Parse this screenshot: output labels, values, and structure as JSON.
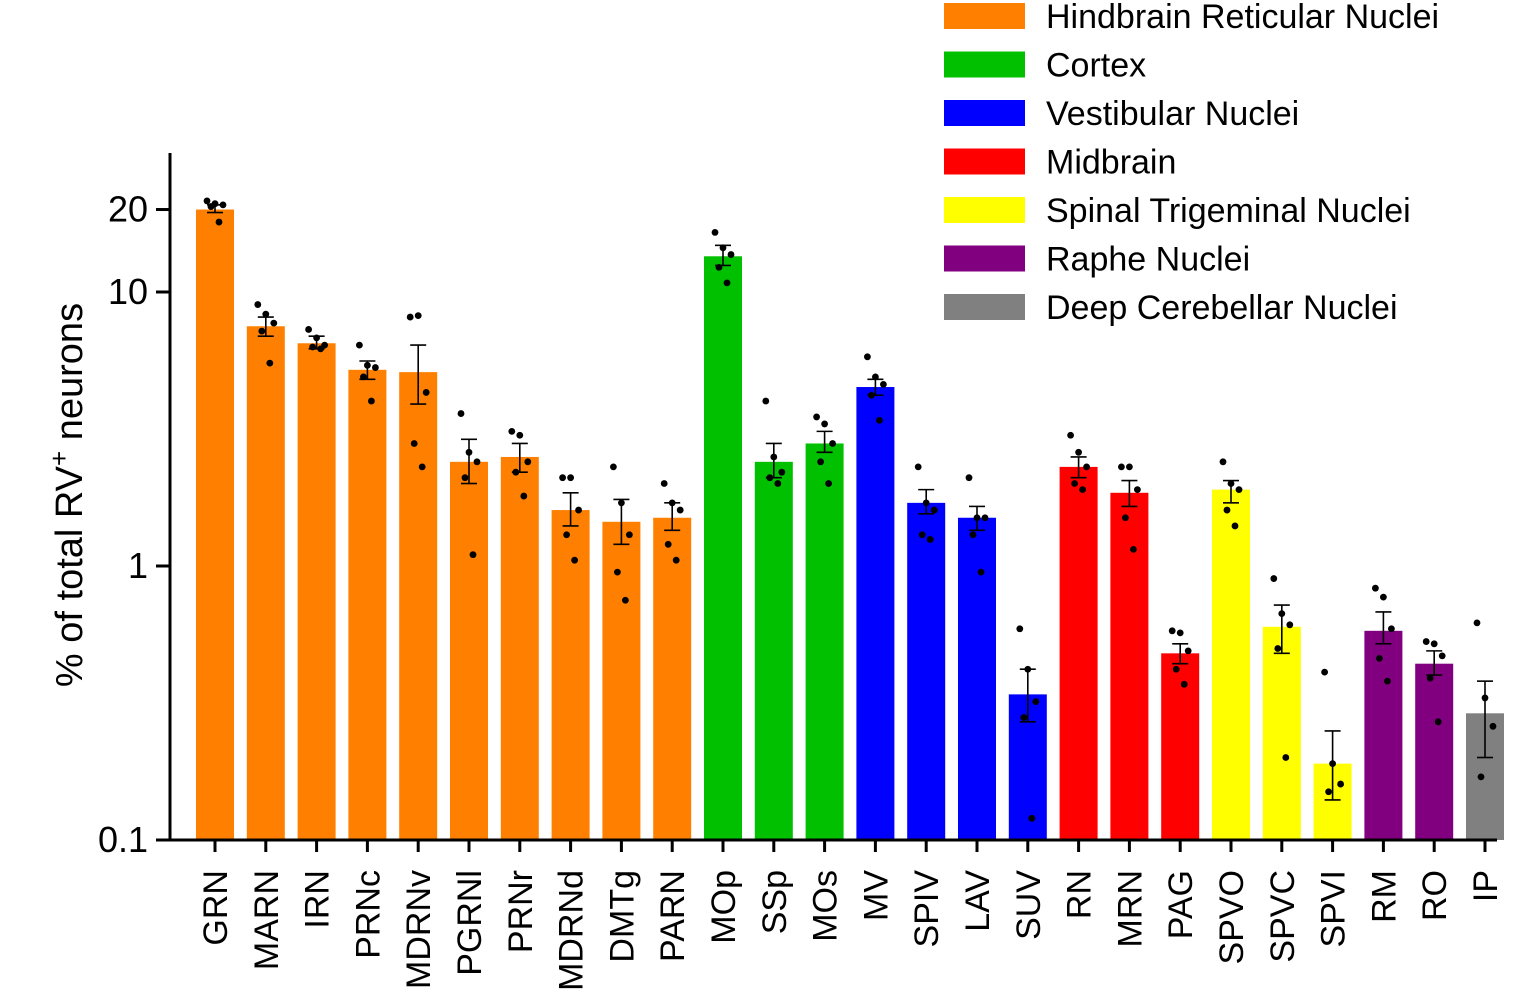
{
  "chart_data": {
    "type": "bar",
    "scale": "log",
    "ylabel": "% of total RV",
    "ylabel_sup": "+",
    "ylabel_suffix": " neurons",
    "ylim": [
      0.1,
      30
    ],
    "yticks": [
      {
        "value": 0.1,
        "label": "0.1"
      },
      {
        "value": 1,
        "label": "1"
      },
      {
        "value": 10,
        "label": "10"
      },
      {
        "value": 20,
        "label": "20"
      }
    ],
    "legend_position": "top-right",
    "groups": [
      {
        "name": "Hindbrain Reticular Nuclei",
        "color": "#ff8000"
      },
      {
        "name": "Cortex",
        "color": "#00c000"
      },
      {
        "name": "Vestibular Nuclei",
        "color": "#0000ff"
      },
      {
        "name": "Midbrain",
        "color": "#ff0000"
      },
      {
        "name": "Spinal Trigeminal Nuclei",
        "color": "#ffff00"
      },
      {
        "name": "Raphe Nuclei",
        "color": "#800080"
      },
      {
        "name": "Deep Cerebellar Nuclei",
        "color": "#808080"
      }
    ],
    "bars": [
      {
        "label": "GRN",
        "group": 0,
        "value": 20.0,
        "err": [
          19.5,
          20.8
        ],
        "points": [
          21.5,
          21.0,
          20.8,
          20.5,
          18.0
        ]
      },
      {
        "label": "MARN",
        "group": 0,
        "value": 7.5,
        "err": [
          6.9,
          8.1
        ],
        "points": [
          9.0,
          8.3,
          7.7,
          7.2,
          5.5
        ]
      },
      {
        "label": "IRN",
        "group": 0,
        "value": 6.5,
        "err": [
          6.2,
          6.9
        ],
        "points": [
          7.3,
          6.8,
          6.4,
          6.3,
          6.2
        ]
      },
      {
        "label": "PRNc",
        "group": 0,
        "value": 5.2,
        "err": [
          4.8,
          5.6
        ],
        "points": [
          6.4,
          5.4,
          5.3,
          4.9,
          4.0
        ]
      },
      {
        "label": "MDRNv",
        "group": 0,
        "value": 5.1,
        "err": [
          3.9,
          6.4
        ],
        "points": [
          8.1,
          8.2,
          4.3,
          2.8,
          2.3
        ]
      },
      {
        "label": "PGRNl",
        "group": 0,
        "value": 2.4,
        "err": [
          2.0,
          2.9
        ],
        "points": [
          3.6,
          2.6,
          2.4,
          2.1,
          1.1
        ]
      },
      {
        "label": "PRNr",
        "group": 0,
        "value": 2.5,
        "err": [
          2.2,
          2.8
        ],
        "points": [
          3.1,
          3.0,
          2.4,
          2.2,
          1.8
        ]
      },
      {
        "label": "MDRNd",
        "group": 0,
        "value": 1.6,
        "err": [
          1.4,
          1.85
        ],
        "points": [
          2.1,
          2.1,
          1.6,
          1.3,
          1.05
        ]
      },
      {
        "label": "DMTg",
        "group": 0,
        "value": 1.45,
        "err": [
          1.2,
          1.75
        ],
        "points": [
          2.3,
          1.7,
          1.3,
          0.95,
          0.75
        ]
      },
      {
        "label": "PARN",
        "group": 0,
        "value": 1.5,
        "err": [
          1.35,
          1.7
        ],
        "points": [
          2.0,
          1.7,
          1.6,
          1.2,
          1.05
        ]
      },
      {
        "label": "MOp",
        "group": 1,
        "value": 13.5,
        "err": [
          12.5,
          14.8
        ],
        "points": [
          16.5,
          14.5,
          13.7,
          12.3,
          10.8
        ]
      },
      {
        "label": "SSp",
        "group": 1,
        "value": 2.4,
        "err": [
          2.1,
          2.8
        ],
        "points": [
          4.0,
          2.5,
          2.2,
          2.1,
          2.0
        ]
      },
      {
        "label": "MOs",
        "group": 1,
        "value": 2.8,
        "err": [
          2.6,
          3.1
        ],
        "points": [
          3.5,
          3.3,
          2.8,
          2.4,
          2.0
        ]
      },
      {
        "label": "MV",
        "group": 2,
        "value": 4.5,
        "err": [
          4.2,
          4.8
        ],
        "points": [
          5.8,
          4.9,
          4.6,
          4.2,
          3.4
        ]
      },
      {
        "label": "SPIV",
        "group": 2,
        "value": 1.7,
        "err": [
          1.55,
          1.9
        ],
        "points": [
          2.3,
          1.7,
          1.6,
          1.3,
          1.25
        ]
      },
      {
        "label": "LAV",
        "group": 2,
        "value": 1.5,
        "err": [
          1.35,
          1.65
        ],
        "points": [
          2.1,
          1.5,
          1.5,
          1.3,
          0.95
        ]
      },
      {
        "label": "SUV",
        "group": 2,
        "value": 0.34,
        "err": [
          0.27,
          0.42
        ],
        "points": [
          0.59,
          0.42,
          0.32,
          0.28,
          0.12
        ]
      },
      {
        "label": "RN",
        "group": 3,
        "value": 2.3,
        "err": [
          2.1,
          2.5
        ],
        "points": [
          3.0,
          2.6,
          2.3,
          2.0,
          1.9
        ]
      },
      {
        "label": "MRN",
        "group": 3,
        "value": 1.85,
        "err": [
          1.65,
          2.05
        ],
        "points": [
          2.3,
          2.3,
          1.9,
          1.5,
          1.15
        ]
      },
      {
        "label": "PAG",
        "group": 3,
        "value": 0.48,
        "err": [
          0.44,
          0.52
        ],
        "points": [
          0.58,
          0.57,
          0.49,
          0.42,
          0.37
        ]
      },
      {
        "label": "SPVO",
        "group": 4,
        "value": 1.9,
        "err": [
          1.7,
          2.05
        ],
        "points": [
          2.4,
          2.0,
          1.9,
          1.6,
          1.4
        ]
      },
      {
        "label": "SPVC",
        "group": 4,
        "value": 0.6,
        "err": [
          0.48,
          0.72
        ],
        "points": [
          0.9,
          0.67,
          0.61,
          0.5,
          0.2
        ]
      },
      {
        "label": "SPVI",
        "group": 4,
        "value": 0.19,
        "err": [
          0.14,
          0.25
        ],
        "points": [
          0.41,
          0.19,
          0.16,
          0.15
        ]
      },
      {
        "label": "RM",
        "group": 5,
        "value": 0.58,
        "err": [
          0.52,
          0.68
        ],
        "points": [
          0.83,
          0.77,
          0.59,
          0.46,
          0.38
        ]
      },
      {
        "label": "RO",
        "group": 5,
        "value": 0.44,
        "err": [
          0.4,
          0.49
        ],
        "points": [
          0.53,
          0.52,
          0.47,
          0.39,
          0.27
        ]
      },
      {
        "label": "IP",
        "group": 6,
        "value": 0.29,
        "err": [
          0.2,
          0.38
        ],
        "points": [
          0.62,
          0.33,
          0.26,
          0.17
        ]
      }
    ]
  }
}
